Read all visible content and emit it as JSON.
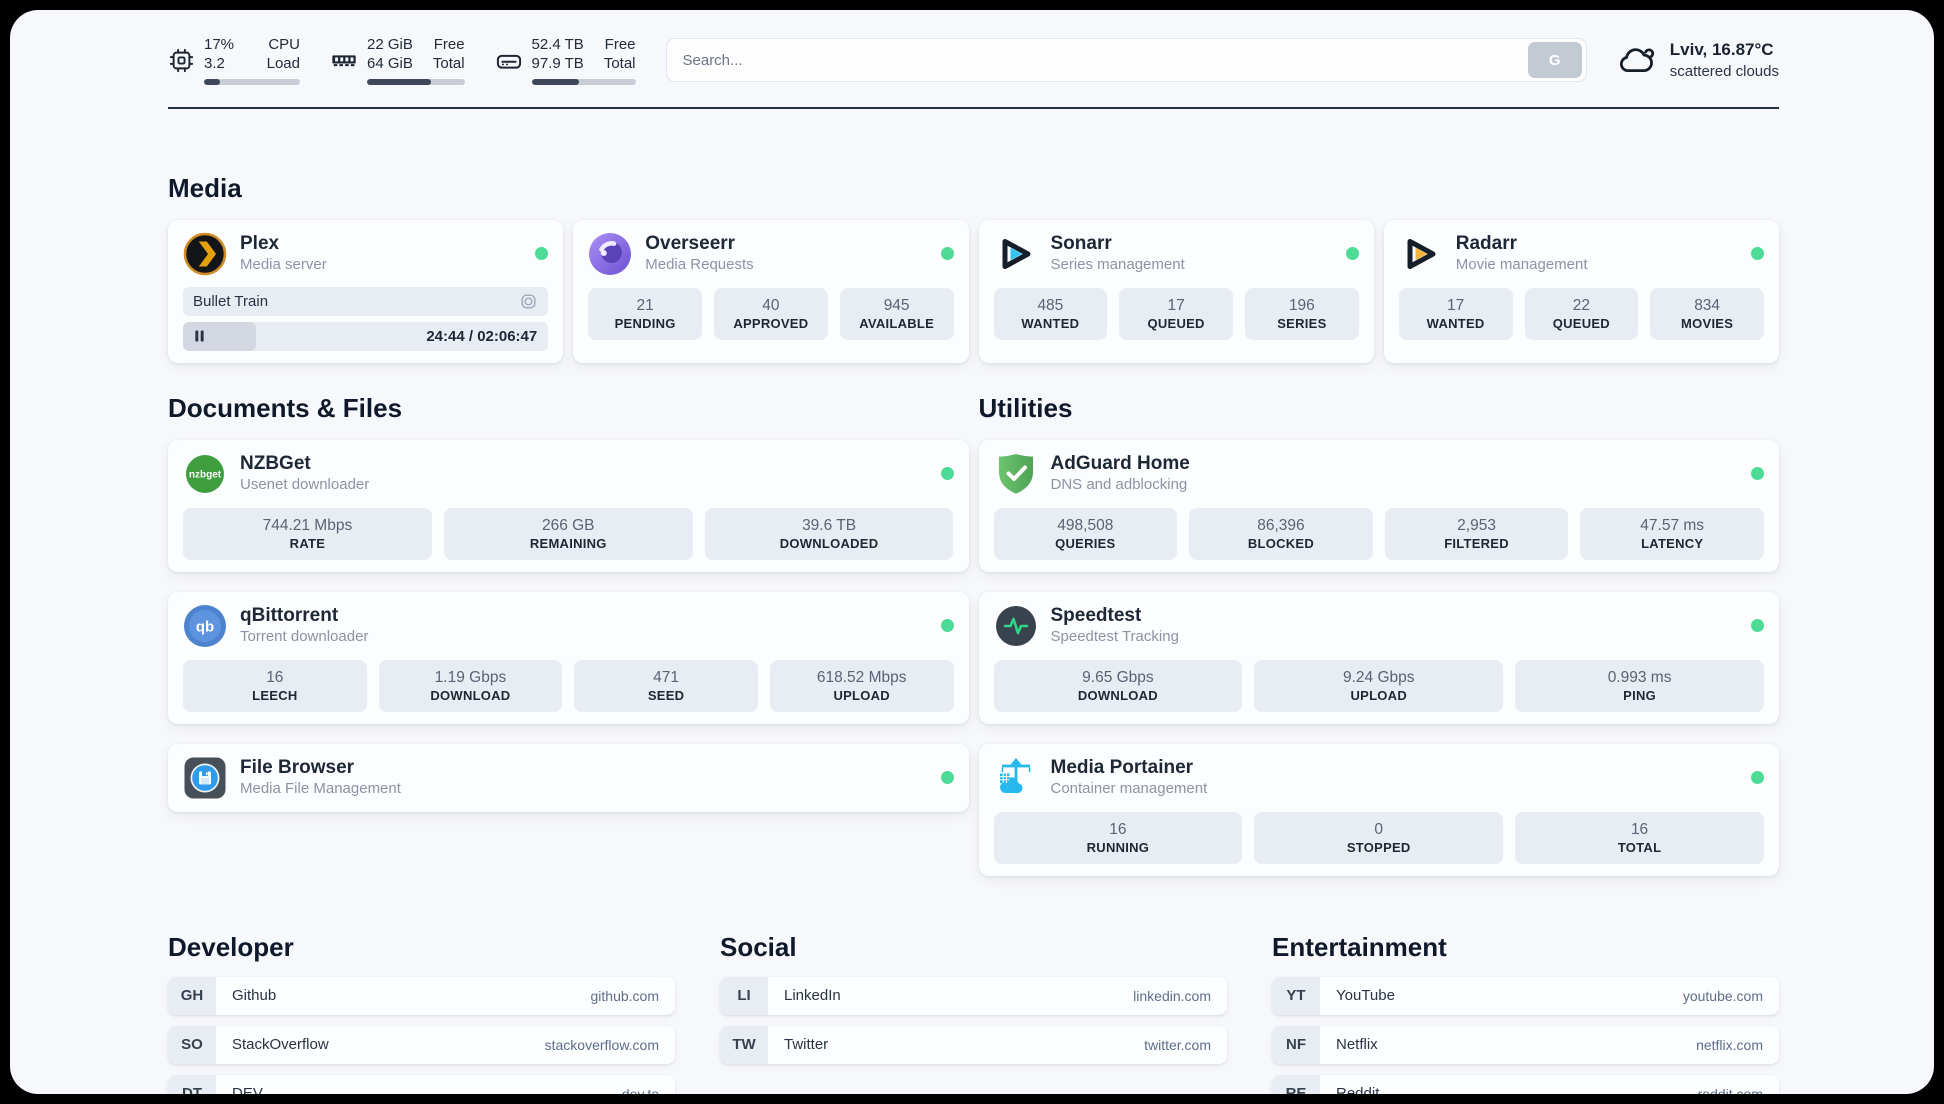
{
  "header": {
    "stats": [
      {
        "icon": "cpu-icon",
        "value1": "17%",
        "value2": "3.2",
        "label1": "CPU",
        "label2": "Load",
        "progress": 17
      },
      {
        "icon": "ram-icon",
        "value1": "22 GiB",
        "value2": "64 GiB",
        "label1": "Free",
        "label2": "Total",
        "progress": 66
      },
      {
        "icon": "disk-icon",
        "value1": "52.4 TB",
        "value2": "97.9 TB",
        "label1": "Free",
        "label2": "Total",
        "progress": 46
      }
    ],
    "search": {
      "placeholder": "Search...",
      "button_label": "G"
    },
    "weather": {
      "location_temp": "Lviv, 16.87°C",
      "condition": "scattered clouds"
    }
  },
  "media": {
    "title": "Media",
    "cards": {
      "plex": {
        "name": "Plex",
        "description": "Media server",
        "status": "online",
        "now_playing": "Bullet Train",
        "time": "24:44 / 02:06:47",
        "progress_percent": 20
      },
      "overseerr": {
        "name": "Overseerr",
        "description": "Media Requests",
        "status": "online",
        "stats": [
          {
            "value": "21",
            "label": "PENDING"
          },
          {
            "value": "40",
            "label": "APPROVED"
          },
          {
            "value": "945",
            "label": "AVAILABLE"
          }
        ]
      },
      "sonarr": {
        "name": "Sonarr",
        "description": "Series management",
        "status": "online",
        "stats": [
          {
            "value": "485",
            "label": "WANTED"
          },
          {
            "value": "17",
            "label": "QUEUED"
          },
          {
            "value": "196",
            "label": "SERIES"
          }
        ]
      },
      "radarr": {
        "name": "Radarr",
        "description": "Movie management",
        "status": "online",
        "stats": [
          {
            "value": "17",
            "label": "WANTED"
          },
          {
            "value": "22",
            "label": "QUEUED"
          },
          {
            "value": "834",
            "label": "MOVIES"
          }
        ]
      }
    }
  },
  "documents": {
    "title": "Documents & Files",
    "cards": {
      "nzbget": {
        "name": "NZBGet",
        "description": "Usenet downloader",
        "status": "online",
        "stats": [
          {
            "value": "744.21 Mbps",
            "label": "RATE"
          },
          {
            "value": "266 GB",
            "label": "REMAINING"
          },
          {
            "value": "39.6 TB",
            "label": "DOWNLOADED"
          }
        ]
      },
      "qbittorrent": {
        "name": "qBittorrent",
        "description": "Torrent downloader",
        "status": "online",
        "stats": [
          {
            "value": "16",
            "label": "LEECH"
          },
          {
            "value": "1.19 Gbps",
            "label": "DOWNLOAD"
          },
          {
            "value": "471",
            "label": "SEED"
          },
          {
            "value": "618.52 Mbps",
            "label": "UPLOAD"
          }
        ]
      },
      "filebrowser": {
        "name": "File Browser",
        "description": "Media File Management",
        "status": "online"
      }
    }
  },
  "utilities": {
    "title": "Utilities",
    "cards": {
      "adguard": {
        "name": "AdGuard Home",
        "description": "DNS and adblocking",
        "status": "online",
        "stats": [
          {
            "value": "498,508",
            "label": "QUERIES"
          },
          {
            "value": "86,396",
            "label": "BLOCKED"
          },
          {
            "value": "2,953",
            "label": "FILTERED"
          },
          {
            "value": "47.57 ms",
            "label": "LATENCY"
          }
        ]
      },
      "speedtest": {
        "name": "Speedtest",
        "description": "Speedtest Tracking",
        "status": "online",
        "stats": [
          {
            "value": "9.65 Gbps",
            "label": "DOWNLOAD"
          },
          {
            "value": "9.24 Gbps",
            "label": "UPLOAD"
          },
          {
            "value": "0.993 ms",
            "label": "PING"
          }
        ]
      },
      "portainer": {
        "name": "Media Portainer",
        "description": "Container management",
        "status": "online",
        "stats": [
          {
            "value": "16",
            "label": "RUNNING"
          },
          {
            "value": "0",
            "label": "STOPPED"
          },
          {
            "value": "16",
            "label": "TOTAL"
          }
        ]
      }
    }
  },
  "bookmarks": {
    "developer": {
      "title": "Developer",
      "items": [
        {
          "abbr": "GH",
          "name": "Github",
          "url": "github.com"
        },
        {
          "abbr": "SO",
          "name": "StackOverflow",
          "url": "stackoverflow.com"
        },
        {
          "abbr": "DT",
          "name": "DEV",
          "url": "dev.to"
        }
      ]
    },
    "social": {
      "title": "Social",
      "items": [
        {
          "abbr": "LI",
          "name": "LinkedIn",
          "url": "linkedin.com"
        },
        {
          "abbr": "TW",
          "name": "Twitter",
          "url": "twitter.com"
        }
      ]
    },
    "entertainment": {
      "title": "Entertainment",
      "items": [
        {
          "abbr": "YT",
          "name": "YouTube",
          "url": "youtube.com"
        },
        {
          "abbr": "NF",
          "name": "Netflix",
          "url": "netflix.com"
        },
        {
          "abbr": "RE",
          "name": "Reddit",
          "url": "reddit.com"
        }
      ]
    }
  },
  "colors": {
    "status_online": "#4edb96",
    "bar_fill": "#3d4757",
    "accent_bg": "#e8ecf3"
  }
}
